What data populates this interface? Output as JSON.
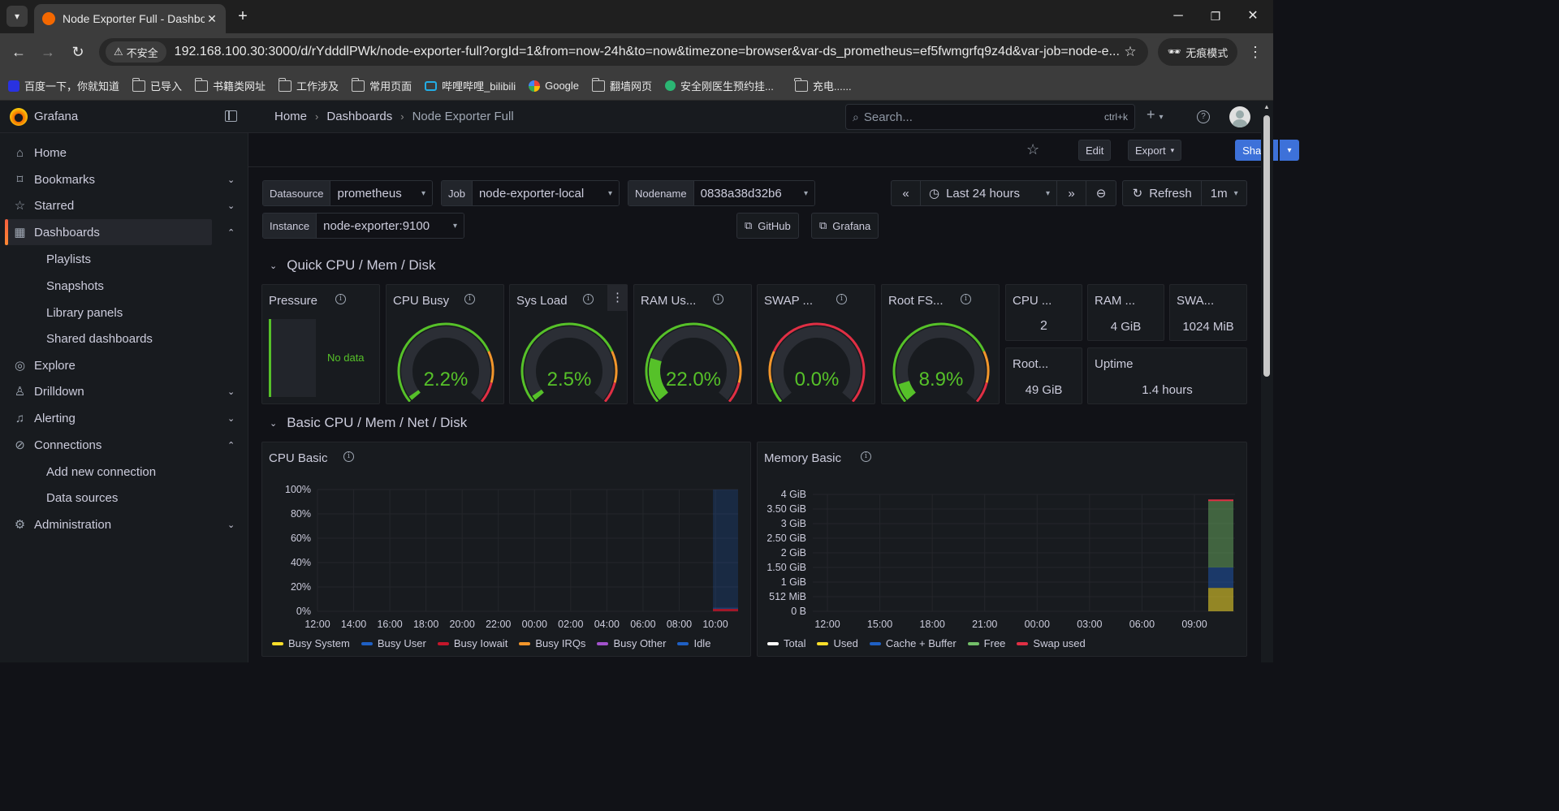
{
  "browser": {
    "tab_title": "Node Exporter Full - Dashboard",
    "address_security": "不安全",
    "url": "192.168.100.30:3000/d/rYdddlPWk/node-exporter-full?orgId=1&from=now-24h&to=now&timezone=browser&var-ds_prometheus=ef5fwmgrfq9z4d&var-job=node-e...",
    "incognito_label": "无痕模式",
    "bookmarks": [
      {
        "label": "百度一下，你就知道",
        "icon": "baidu-icon"
      },
      {
        "label": "已导入",
        "icon": "folder-icon"
      },
      {
        "label": "书籍类网址",
        "icon": "folder-icon"
      },
      {
        "label": "工作涉及",
        "icon": "folder-icon"
      },
      {
        "label": "常用页面",
        "icon": "folder-icon"
      },
      {
        "label": "哔哩哔哩_bilibili",
        "icon": "bilibili-icon"
      },
      {
        "label": "Google",
        "icon": "google-icon"
      },
      {
        "label": "翻墙网页",
        "icon": "folder-icon"
      },
      {
        "label": "安全刚医生预约挂...",
        "icon": "app-icon"
      },
      {
        "label": "充电......",
        "icon": "folder-icon"
      }
    ]
  },
  "grafana": {
    "brand": "Grafana",
    "breadcrumb": [
      "Home",
      "Dashboards",
      "Node Exporter Full"
    ],
    "search_placeholder": "Search...",
    "search_shortcut": "ctrl+k",
    "sidebar": {
      "items": [
        {
          "label": "Home",
          "icon": "home-icon"
        },
        {
          "label": "Bookmarks",
          "icon": "bookmark-icon"
        },
        {
          "label": "Starred",
          "icon": "star-icon"
        },
        {
          "label": "Dashboards",
          "icon": "dashboards-icon"
        },
        {
          "label": "Explore",
          "icon": "compass-icon"
        },
        {
          "label": "Drilldown",
          "icon": "drilldown-icon"
        },
        {
          "label": "Alerting",
          "icon": "bell-icon"
        },
        {
          "label": "Connections",
          "icon": "connections-icon"
        },
        {
          "label": "Administration",
          "icon": "gear-icon"
        }
      ],
      "dashboards_children": [
        "Playlists",
        "Snapshots",
        "Library panels",
        "Shared dashboards"
      ],
      "connections_children": [
        "Add new connection",
        "Data sources"
      ]
    },
    "toolbar": {
      "edit": "Edit",
      "export": "Export",
      "share": "Share"
    },
    "variables": {
      "datasource": {
        "label": "Datasource",
        "value": "prometheus"
      },
      "job": {
        "label": "Job",
        "value": "node-exporter-local"
      },
      "nodename": {
        "label": "Nodename",
        "value": "0838a38d32b6"
      },
      "instance": {
        "label": "Instance",
        "value": "node-exporter:9100"
      }
    },
    "time": {
      "range": "Last 24 hours",
      "refresh": "Refresh",
      "interval": "1m"
    },
    "links": {
      "github": "GitHub",
      "grafana": "Grafana"
    },
    "rows": {
      "quick": "Quick CPU / Mem / Disk",
      "basic": "Basic CPU / Mem / Net / Disk"
    },
    "pressure": {
      "title": "Pressure",
      "no_data": "No data"
    },
    "gauges": [
      {
        "title": "CPU Busy",
        "value": 2.2,
        "display": "2.2%"
      },
      {
        "title": "Sys Load",
        "value": 2.5,
        "display": "2.5%"
      },
      {
        "title": "RAM Us...",
        "value": 22.0,
        "display": "22.0%"
      },
      {
        "title": "SWAP ...",
        "value": 0.0,
        "display": "0.0%"
      },
      {
        "title": "Root FS...",
        "value": 8.9,
        "display": "8.9%"
      }
    ],
    "stats": [
      {
        "title": "CPU ...",
        "value": "2"
      },
      {
        "title": "RAM ...",
        "value": "4 GiB"
      },
      {
        "title": "SWA...",
        "value": "1024 MiB"
      },
      {
        "title": "Root...",
        "value": "49 GiB"
      },
      {
        "title": "Uptime",
        "value": "1.4 hours"
      }
    ],
    "colors": {
      "green": "#37872d",
      "gauge_green": "#56c129",
      "yellow": "#fade2a",
      "red": "#e02f44",
      "blue": "#1f60c4"
    }
  },
  "chart_data": [
    {
      "type": "area",
      "title": "CPU Basic",
      "y_ticks": [
        "100%",
        "80%",
        "60%",
        "40%",
        "20%",
        "0%"
      ],
      "ylim": [
        0,
        100
      ],
      "x_ticks": [
        "12:00",
        "14:00",
        "16:00",
        "18:00",
        "20:00",
        "22:00",
        "00:00",
        "02:00",
        "04:00",
        "06:00",
        "08:00",
        "10:00"
      ],
      "series": [
        {
          "name": "Busy System",
          "color": "#fade2a",
          "values": [
            2
          ]
        },
        {
          "name": "Busy User",
          "color": "#1f60c4",
          "values": [
            1
          ]
        },
        {
          "name": "Busy Iowait",
          "color": "#c4162a",
          "values": [
            0
          ]
        },
        {
          "name": "Busy IRQs",
          "color": "#f2962b",
          "values": [
            0
          ]
        },
        {
          "name": "Busy Other",
          "color": "#a352cc",
          "values": [
            0
          ]
        },
        {
          "name": "Idle",
          "color": "#1f60c4",
          "values": [
            97
          ]
        }
      ],
      "legend": "bottom"
    },
    {
      "type": "area",
      "title": "Memory Basic",
      "y_ticks": [
        "4 GiB",
        "3.50 GiB",
        "3 GiB",
        "2.50 GiB",
        "2 GiB",
        "1.50 GiB",
        "1 GiB",
        "512 MiB",
        "0 B"
      ],
      "x_ticks": [
        "12:00",
        "15:00",
        "18:00",
        "21:00",
        "00:00",
        "03:00",
        "06:00",
        "09:00"
      ],
      "series": [
        {
          "name": "Total",
          "color": "#ffffff",
          "values_gib": [
            3.8
          ]
        },
        {
          "name": "Used",
          "color": "#fade2a",
          "values_gib": [
            0.8
          ]
        },
        {
          "name": "Cache + Buffer",
          "color": "#1f60c4",
          "values_gib": [
            0.7
          ]
        },
        {
          "name": "Free",
          "color": "#73bf69",
          "values_gib": [
            2.3
          ]
        },
        {
          "name": "Swap used",
          "color": "#e02f44",
          "values_gib": [
            0.0
          ]
        }
      ],
      "legend": "bottom"
    }
  ]
}
